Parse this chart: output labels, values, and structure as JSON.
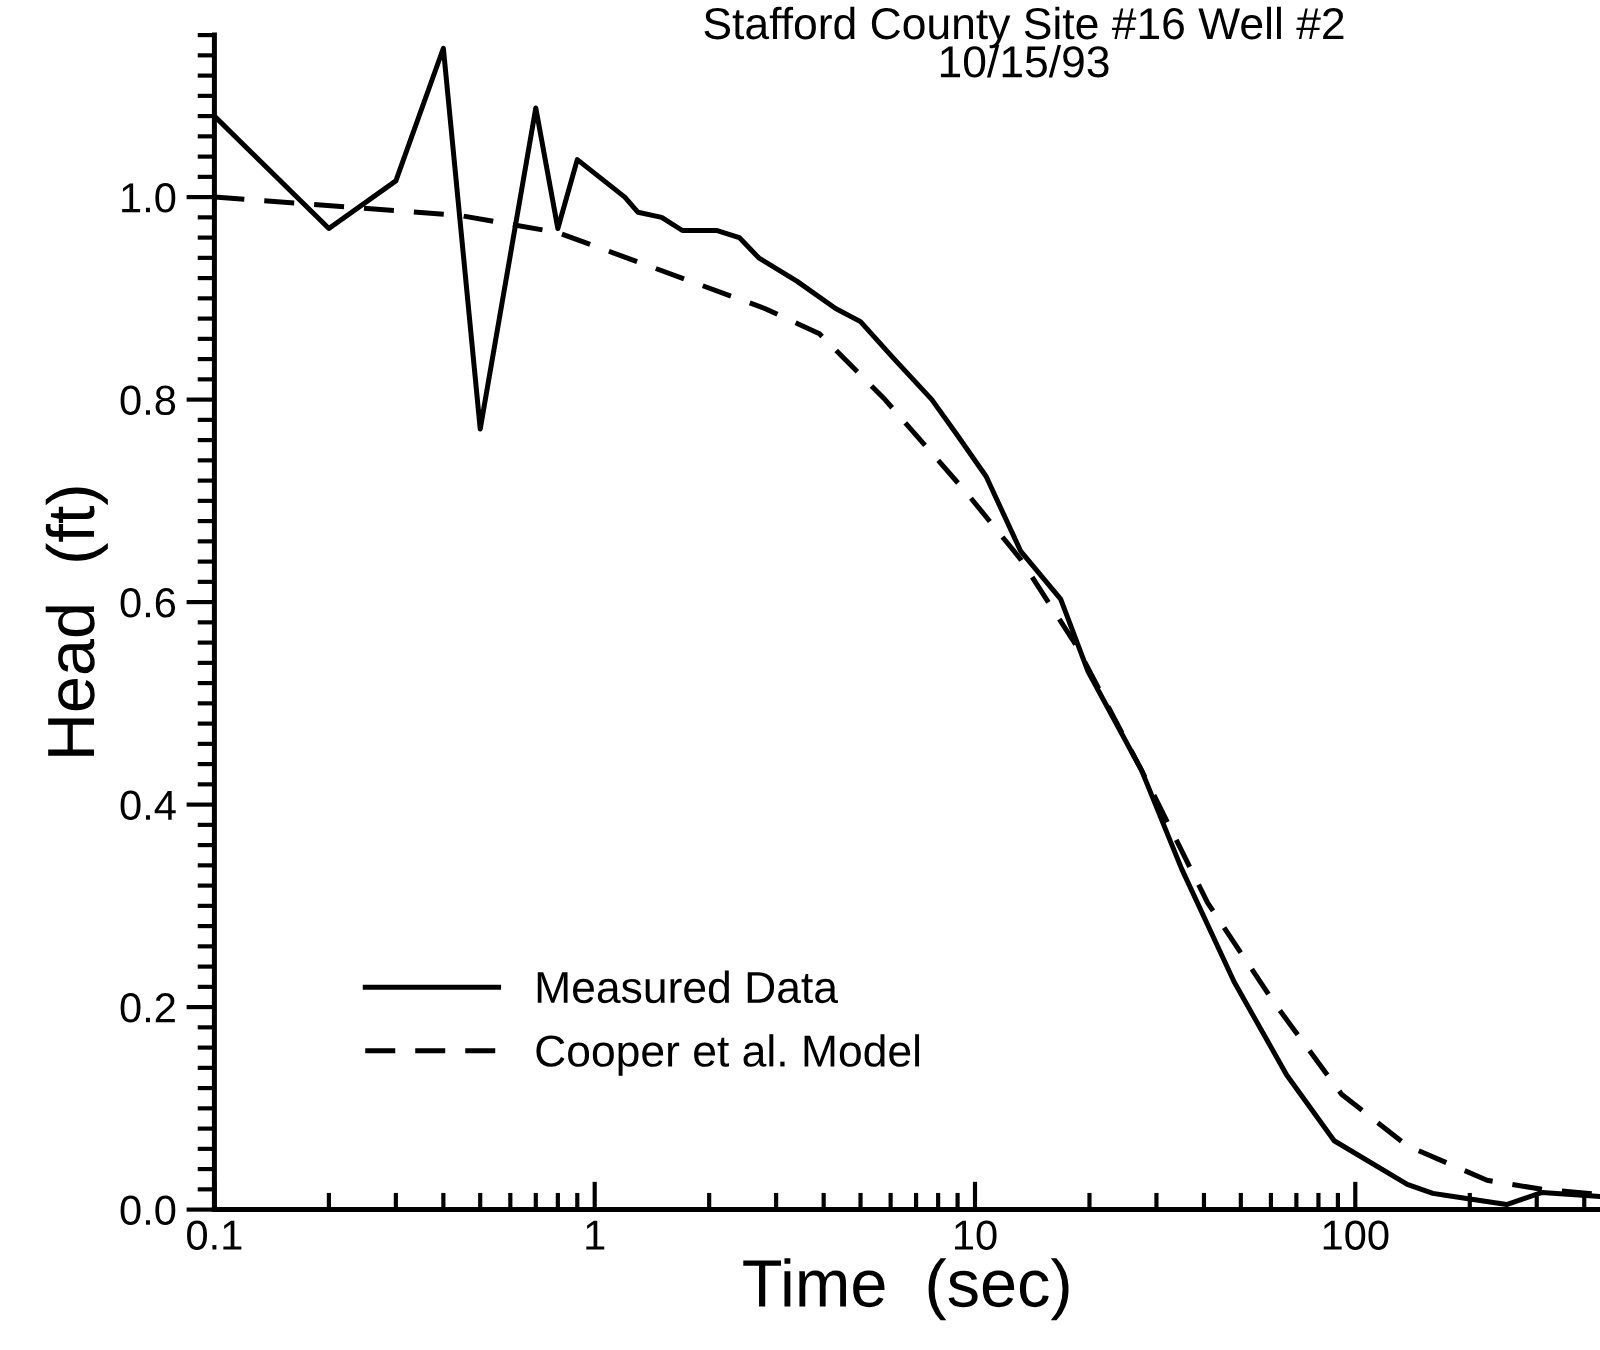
{
  "chart_data": {
    "type": "line",
    "title": "Stafford County Site #16 Well #2\n10/15/93",
    "xlabel": "Time  (sec)",
    "ylabel": "Head  (ft)",
    "log": "x",
    "xlim": [
      0.1,
      440
    ],
    "xticks": [
      {
        "value": 0.1,
        "label": "0.1"
      },
      1,
      10,
      100
    ],
    "ylim": [
      0,
      1.16
    ],
    "yticks": [
      {
        "value": 0,
        "label": "0.0"
      },
      {
        "value": 0.2,
        "label": "0.2"
      },
      {
        "value": 0.4,
        "label": "0.4"
      },
      {
        "value": 0.6,
        "label": "0.6"
      },
      {
        "value": 0.8,
        "label": "0.8"
      },
      {
        "value": 1.0,
        "label": "1.0"
      }
    ],
    "grid": false,
    "legend": "bottom left",
    "marker": "none",
    "series": [
      {
        "name": "Measured Data",
        "color": "#000000",
        "line_style": "solid",
        "x": [
          0.1,
          0.2,
          0.3,
          0.4,
          0.5,
          0.7,
          0.8,
          0.9,
          1.2,
          1.3,
          1.5,
          1.7,
          2.1,
          2.4,
          2.7,
          3.4,
          4.3,
          5.0,
          6.1,
          7.7,
          8.9,
          10.7,
          13.2,
          16.8,
          19.8,
          27.4,
          34.9,
          48,
          66,
          88,
          137,
          160,
          174,
          250,
          310,
          440
        ],
        "values": [
          1.08,
          0.969,
          1.016,
          1.147,
          0.771,
          1.088,
          0.969,
          1.037,
          1.0,
          0.985,
          0.98,
          0.967,
          0.967,
          0.96,
          0.94,
          0.917,
          0.89,
          0.877,
          0.841,
          0.8,
          0.767,
          0.724,
          0.65,
          0.603,
          0.532,
          0.434,
          0.337,
          0.225,
          0.133,
          0.068,
          0.025,
          0.016,
          0.014,
          0.005,
          0.017,
          0.013
        ]
      },
      {
        "name": "Cooper et al. Model",
        "color": "#000000",
        "line_style": "dashed",
        "x": [
          0.1,
          0.44,
          0.8,
          2.8,
          3.9,
          5.8,
          9.5,
          13.2,
          18.4,
          27.4,
          40.9,
          61,
          92,
          137,
          222,
          310,
          440
        ],
        "values": [
          1.0,
          0.982,
          0.965,
          0.89,
          0.865,
          0.8,
          0.708,
          0.642,
          0.558,
          0.434,
          0.303,
          0.205,
          0.114,
          0.063,
          0.029,
          0.02,
          0.015
        ]
      }
    ]
  }
}
